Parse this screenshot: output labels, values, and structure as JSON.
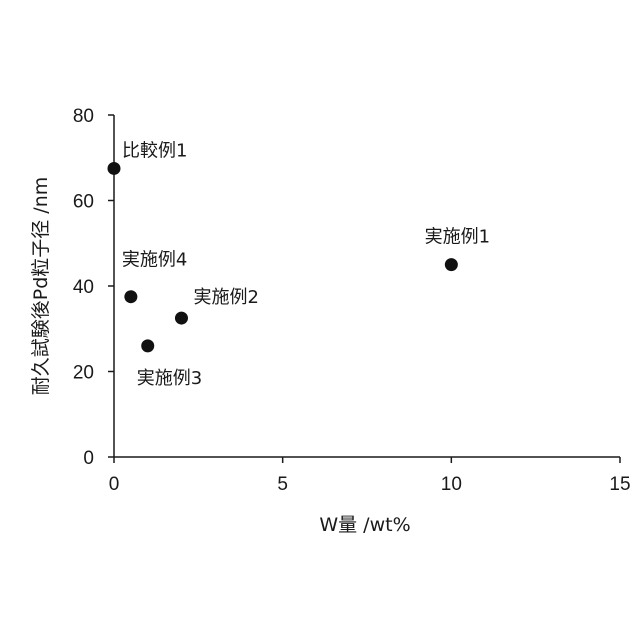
{
  "chart_data": {
    "type": "scatter",
    "title": "",
    "xlabel": "W量 /wt%",
    "ylabel": "耐久試験後Pd粒子径 /nm",
    "xlim": [
      0,
      15
    ],
    "ylim": [
      0,
      80
    ],
    "xticks": [
      0,
      5,
      10,
      15
    ],
    "yticks": [
      0,
      20,
      40,
      60,
      80
    ],
    "grid": false,
    "legend": "none",
    "marker_color": "#111111",
    "points": [
      {
        "label": "比較例1",
        "x": 0,
        "y": 67.5
      },
      {
        "label": "実施例1",
        "x": 10,
        "y": 45
      },
      {
        "label": "実施例2",
        "x": 2,
        "y": 32.5
      },
      {
        "label": "実施例3",
        "x": 1,
        "y": 26
      },
      {
        "label": "実施例4",
        "x": 0.5,
        "y": 37.5
      }
    ]
  }
}
